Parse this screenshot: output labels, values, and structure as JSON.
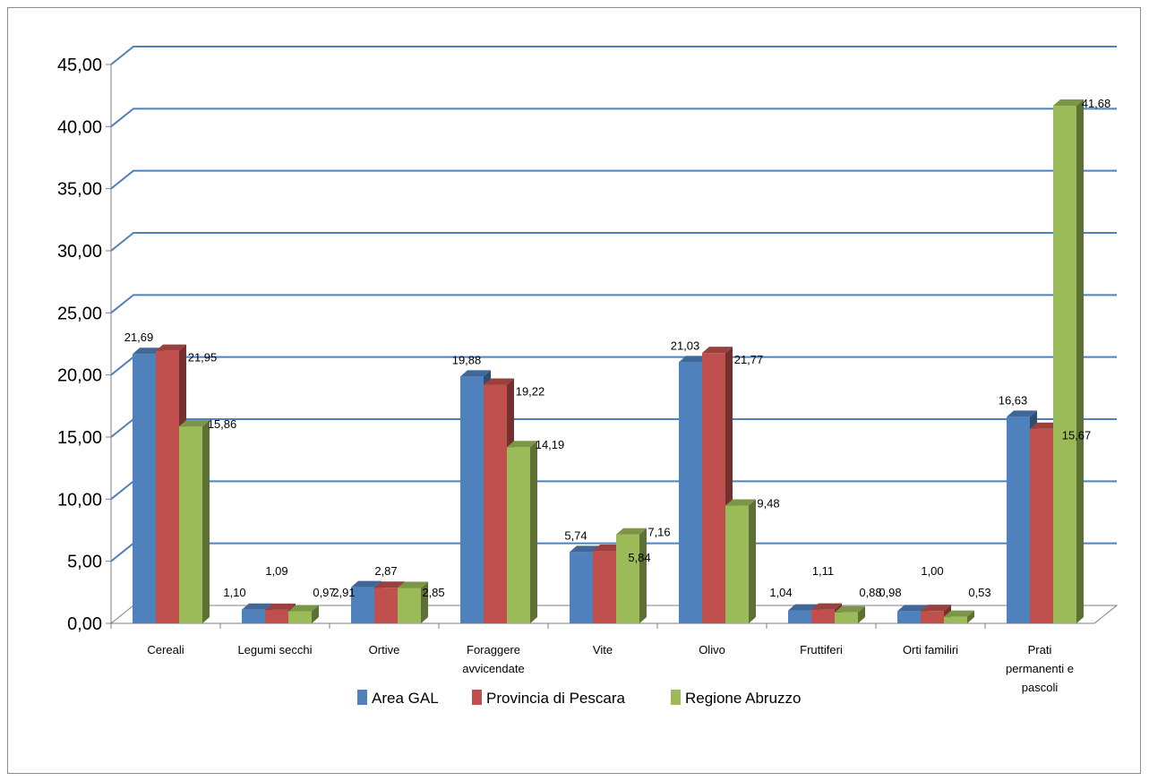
{
  "chart_data": {
    "type": "bar",
    "title": "",
    "xlabel": "",
    "ylabel": "",
    "ylim": [
      0,
      45
    ],
    "yticks": [
      "0,00",
      "5,00",
      "10,00",
      "15,00",
      "20,00",
      "25,00",
      "30,00",
      "35,00",
      "40,00",
      "45,00"
    ],
    "grid": true,
    "legend_position": "bottom",
    "categories": [
      [
        "Cereali"
      ],
      [
        "Legumi secchi"
      ],
      [
        "Ortive"
      ],
      [
        "Foraggere",
        "avvicendate"
      ],
      [
        "Vite"
      ],
      [
        "Olivo"
      ],
      [
        "Fruttiferi"
      ],
      [
        "Orti familiri"
      ],
      [
        "Prati",
        "permanenti e",
        "pascoli"
      ]
    ],
    "series": [
      {
        "name": "Area GAL",
        "color": "#4f81bd",
        "values": [
          21.69,
          1.1,
          2.91,
          19.88,
          5.74,
          21.03,
          1.04,
          0.98,
          16.63
        ],
        "labels": [
          "21,69",
          "1,10",
          "2,91",
          "19,88",
          "5,74",
          "21,03",
          "1,04",
          "0,98",
          "16,63"
        ]
      },
      {
        "name": "Provincia di Pescara",
        "color": "#c0504d",
        "values": [
          21.95,
          1.09,
          2.87,
          19.22,
          5.84,
          21.77,
          1.11,
          1.0,
          15.67
        ],
        "labels": [
          "21,95",
          "1,09",
          "2,87",
          "19,22",
          "5,84",
          "21,77",
          "1,11",
          "1,00",
          "15,67"
        ]
      },
      {
        "name": "Regione Abruzzo",
        "color": "#9bbb59",
        "values": [
          15.86,
          0.97,
          2.85,
          14.19,
          7.16,
          9.48,
          0.88,
          0.53,
          41.68
        ],
        "labels": [
          "15,86",
          "0,97",
          "2,85",
          "14,19",
          "7,16",
          "9,48",
          "0,88",
          "0,53",
          "41,68"
        ]
      }
    ]
  }
}
